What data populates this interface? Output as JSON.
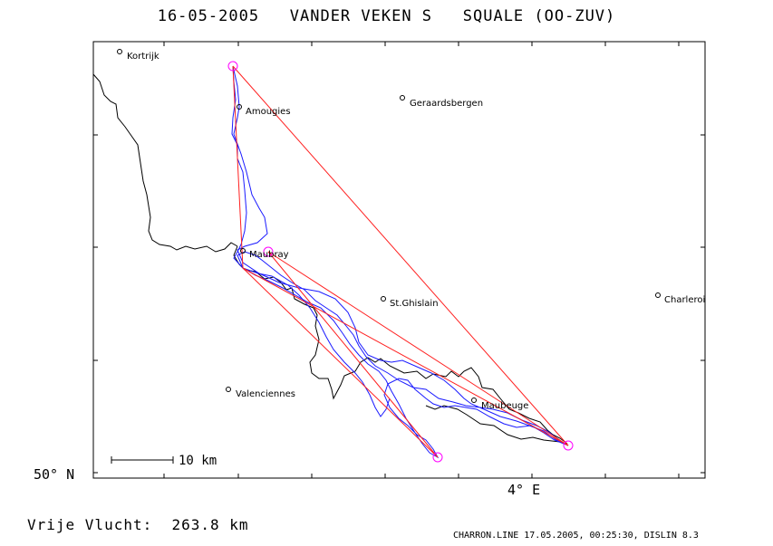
{
  "title": "16-05-2005   VANDER VEKEN S   SQUALE (OO-ZUV)",
  "axes": {
    "lat_label": "50° N",
    "lon_label": "4° E"
  },
  "scale_bar": {
    "label": "10 km",
    "km": 10
  },
  "flight_distance": "Vrije Vlucht:  263.8 km",
  "footer": "CHARRON.LINE 17.05.2005, 00:25:30, DISLIN 8.3",
  "colors": {
    "track": "#1a1aff",
    "task": "#ff2020",
    "turnpoint": "#ff00ff",
    "border": "#000000"
  },
  "cities": [
    {
      "name": "Kortrijk"
    },
    {
      "name": "Amougies"
    },
    {
      "name": "Geraardsbergen"
    },
    {
      "name": "Maubray"
    },
    {
      "name": "St.Ghislain"
    },
    {
      "name": "Charleroi"
    },
    {
      "name": "Valenciennes"
    },
    {
      "name": "Maubeuge"
    }
  ]
}
